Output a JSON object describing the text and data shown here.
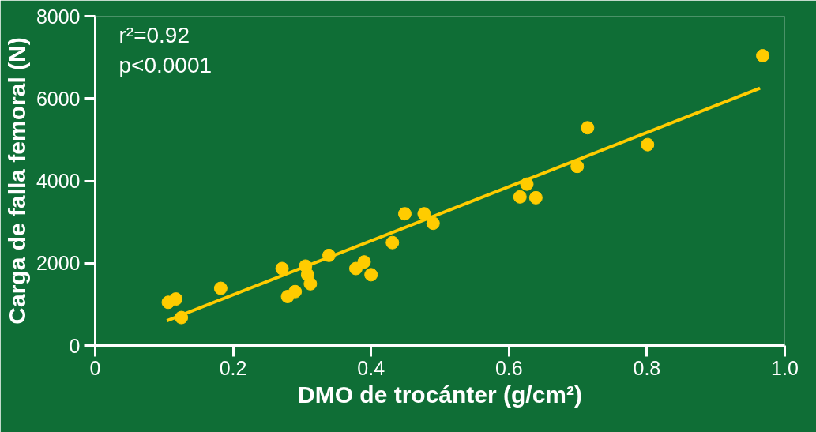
{
  "chart_data": {
    "type": "scatter",
    "xlabel": "DMO de trocánter (g/cm²)",
    "ylabel": "Carga de falla femoral (N)",
    "annotations": [
      "r²=0.92",
      "p<0.0001"
    ],
    "series": [
      {
        "marker": "circle",
        "color": "#ffcc00",
        "x": [
          0.106,
          0.117,
          0.125,
          0.182,
          0.271,
          0.279,
          0.29,
          0.305,
          0.308,
          0.312,
          0.339,
          0.378,
          0.39,
          0.4,
          0.431,
          0.449,
          0.477,
          0.49,
          0.616,
          0.626,
          0.639,
          0.699,
          0.714,
          0.801,
          0.968
        ],
        "values": [
          1050,
          1130,
          680,
          1390,
          1870,
          1190,
          1310,
          1930,
          1720,
          1500,
          2190,
          1870,
          2030,
          1720,
          2500,
          3200,
          3200,
          2970,
          3610,
          3920,
          3590,
          4350,
          5290,
          4880,
          7040
        ]
      },
      {
        "type": "line",
        "marker": "none",
        "color": "#ffcc00",
        "x": [
          0.104,
          0.964
        ],
        "values": [
          600,
          6250
        ]
      }
    ],
    "line_style": "solid",
    "grid": false,
    "xlim": [
      0,
      1.0
    ],
    "xticks": [
      0,
      0.2,
      0.4,
      0.6,
      0.8,
      {
        "value": 1.0,
        "label": "1.0"
      }
    ],
    "ylim": [
      0,
      8000
    ],
    "yticks": [
      0,
      2000,
      4000,
      6000,
      8000
    ]
  }
}
